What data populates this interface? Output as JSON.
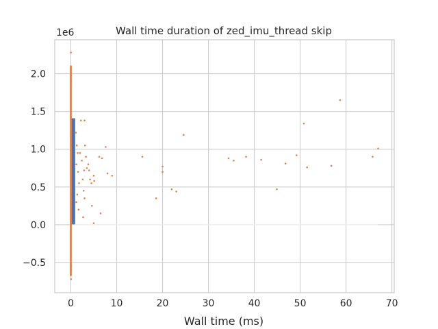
{
  "chart_data": {
    "type": "scatter",
    "title": "Wall time duration of zed_imu_thread skip",
    "xlabel": "Wall time (ms)",
    "ylabel": "",
    "y_offset_label": "1e6",
    "xlim": [
      -3.5,
      70.5
    ],
    "ylim": [
      -0.9,
      2.45
    ],
    "y_scale_factor": 1000000,
    "x_ticks": [
      0,
      10,
      20,
      30,
      40,
      50,
      60,
      70
    ],
    "x_tick_labels": [
      "0",
      "10",
      "20",
      "30",
      "40",
      "50",
      "60",
      "70"
    ],
    "y_ticks": [
      -0.5,
      0.0,
      0.5,
      1.0,
      1.5,
      2.0
    ],
    "y_tick_labels": [
      "−0.5",
      "0.0",
      "0.5",
      "1.0",
      "1.5",
      "2.0"
    ],
    "grid": true,
    "colors": {
      "histogram": "#4c72b0",
      "points": "#dd8452",
      "grid": "#cccccc",
      "text": "#262626"
    },
    "histogram": {
      "name": "",
      "bins": [
        {
          "x0": 0.0,
          "x1": 0.95,
          "y0": 0.0,
          "y1": 1.41
        }
      ]
    },
    "series": [
      {
        "name": "",
        "color": "#dd8452",
        "points": [
          [
            0.02,
            2.28
          ],
          [
            0.03,
            2.1
          ],
          [
            0.01,
            2.05
          ],
          [
            0.04,
            1.98
          ],
          [
            0.02,
            1.9
          ],
          [
            0.05,
            -0.72
          ],
          [
            0.02,
            -0.6
          ],
          [
            0.03,
            -0.55
          ],
          [
            0.04,
            0.0
          ],
          [
            1.1,
            1.22
          ],
          [
            1.3,
            1.05
          ],
          [
            1.5,
            0.95
          ],
          [
            1.2,
            0.8
          ],
          [
            1.6,
            0.7
          ],
          [
            1.8,
            0.55
          ],
          [
            1.4,
            0.4
          ],
          [
            1.2,
            0.3
          ],
          [
            1.7,
            0.2
          ],
          [
            2.0,
            0.95
          ],
          [
            2.2,
            1.38
          ],
          [
            3.0,
            1.38
          ],
          [
            2.4,
            0.85
          ],
          [
            2.6,
            0.6
          ],
          [
            2.8,
            0.45
          ],
          [
            3.1,
            1.05
          ],
          [
            3.3,
            0.9
          ],
          [
            2.9,
            0.72
          ],
          [
            3.0,
            0.35
          ],
          [
            2.7,
            0.1
          ],
          [
            3.5,
            0.75
          ],
          [
            3.8,
            0.8
          ],
          [
            4.0,
            0.72
          ],
          [
            4.2,
            0.6
          ],
          [
            4.5,
            0.55
          ],
          [
            4.6,
            0.25
          ],
          [
            5.0,
            0.65
          ],
          [
            5.1,
            0.58
          ],
          [
            5.0,
            0.02
          ],
          [
            6.2,
            0.9
          ],
          [
            6.8,
            0.88
          ],
          [
            6.5,
            0.15
          ],
          [
            7.6,
            1.03
          ],
          [
            8.0,
            0.68
          ],
          [
            9.0,
            0.65
          ],
          [
            15.6,
            0.9
          ],
          [
            18.6,
            0.35
          ],
          [
            20.0,
            0.77
          ],
          [
            20.0,
            0.7
          ],
          [
            22.0,
            0.47
          ],
          [
            23.0,
            0.44
          ],
          [
            24.6,
            1.19
          ],
          [
            34.4,
            0.88
          ],
          [
            35.5,
            0.85
          ],
          [
            38.2,
            0.9
          ],
          [
            41.5,
            0.86
          ],
          [
            44.9,
            0.47
          ],
          [
            46.8,
            0.81
          ],
          [
            49.2,
            0.92
          ],
          [
            50.8,
            1.34
          ],
          [
            51.5,
            0.76
          ],
          [
            56.8,
            0.78
          ],
          [
            58.7,
            1.65
          ],
          [
            65.8,
            0.9
          ],
          [
            67.0,
            1.01
          ]
        ]
      }
    ]
  }
}
